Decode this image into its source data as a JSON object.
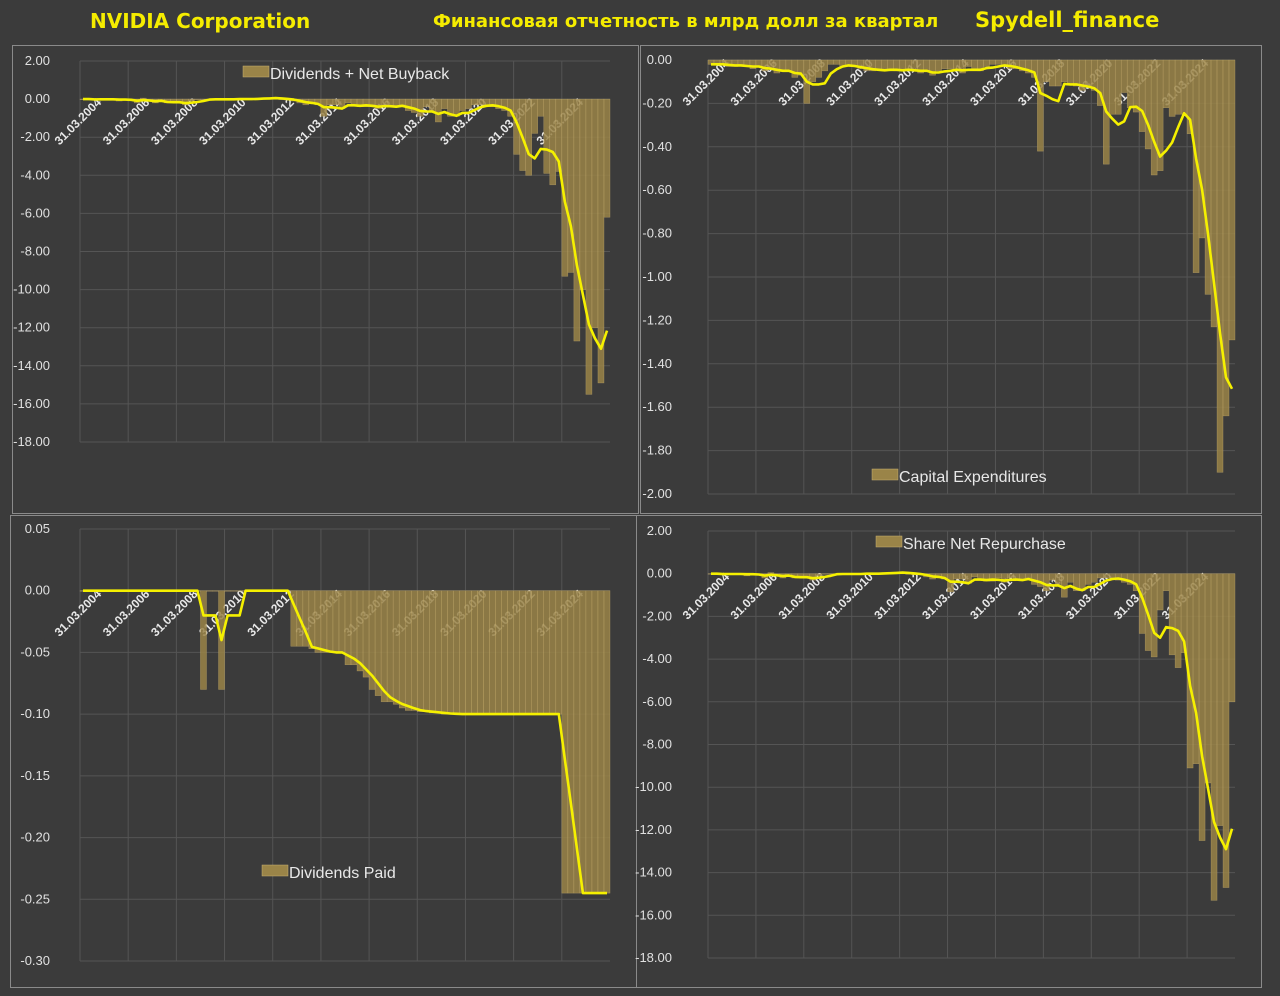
{
  "header": {
    "company": "NVIDIA Corporation",
    "title": "Финансовая отчетность в млрд долл за квартал",
    "source": "Spydell_finance"
  },
  "colors": {
    "bar": "#9a8448",
    "line": "#f5f000",
    "title": "#f5ec00",
    "background": "#3b3b3b"
  },
  "chart_data": [
    {
      "type": "bar+line",
      "legend": "Dividends + Net Buyback",
      "legend_placement": "top",
      "ylim": [
        -18,
        2
      ],
      "ystep": 2,
      "ydecimals": 2,
      "x_start": "31.03.2004",
      "frequency": "quarterly",
      "x_tick_labels": [
        "31.03.2004",
        "31.03.2006",
        "31.03.2008",
        "31.03.2010",
        "31.03.2012",
        "31.03.2014",
        "31.03.2016",
        "31.03.2018",
        "31.03.2020",
        "31.03.2022",
        "31.03.2024"
      ],
      "line": "4-quarter moving average",
      "grid": true,
      "values": [
        0,
        0,
        -0.05,
        0,
        0,
        0,
        -0.1,
        0,
        -0.05,
        -0.2,
        0.05,
        -0.1,
        -0.2,
        -0.1,
        -0.2,
        -0.15,
        -0.2,
        -0.3,
        -0.1,
        0,
        0,
        0,
        -0.05,
        0,
        0,
        0,
        0,
        0,
        0,
        0.05,
        0.05,
        0.05,
        0.05,
        0,
        -0.05,
        -0.1,
        -0.2,
        -0.3,
        -0.2,
        -0.3,
        -0.9,
        -0.3,
        -0.3,
        -0.5,
        -0.2,
        -0.3,
        -0.4,
        -0.4,
        -0.3,
        -0.5,
        -0.3,
        -0.4,
        -0.4,
        -0.3,
        -0.6,
        -0.7,
        -0.9,
        -0.4,
        -0.6,
        -1.2,
        -0.5,
        -0.9,
        -0.9,
        -0.6,
        -0.5,
        -0.3,
        -0.3,
        -0.3,
        -0.4,
        -0.5,
        -0.6,
        -0.9,
        -2.9,
        -3.75,
        -4.0,
        -1.8,
        -0.9,
        -3.9,
        -4.5,
        -3.8,
        -9.3,
        -9.1,
        -12.7,
        -10.0,
        -15.5,
        -12.0,
        -14.9,
        -6.2
      ]
    },
    {
      "type": "bar+line",
      "legend": "Capital Expenditures",
      "legend_placement": "bottom",
      "ylim": [
        -2,
        0
      ],
      "ystep": 0.2,
      "ydecimals": 2,
      "x_start": "31.03.2004",
      "frequency": "quarterly",
      "x_tick_labels": [
        "31.03.2004",
        "31.03.2006",
        "31.03.2008",
        "31.03.2010",
        "31.03.2012",
        "31.03.2014",
        "31.03.2016",
        "31.03.2018",
        "31.03.2020",
        "31.03.2022",
        "31.03.2024"
      ],
      "line": "4-quarter moving average",
      "grid": true,
      "values": [
        -0.02,
        -0.02,
        -0.02,
        -0.03,
        -0.03,
        -0.02,
        -0.03,
        -0.04,
        -0.03,
        -0.05,
        -0.04,
        -0.06,
        -0.05,
        -0.05,
        -0.08,
        -0.07,
        -0.2,
        -0.1,
        -0.08,
        -0.05,
        -0.02,
        -0.02,
        -0.03,
        -0.03,
        -0.03,
        -0.04,
        -0.05,
        -0.05,
        -0.04,
        -0.05,
        -0.04,
        -0.05,
        -0.05,
        -0.04,
        -0.05,
        -0.06,
        -0.05,
        -0.07,
        -0.05,
        -0.04,
        -0.04,
        -0.05,
        -0.06,
        -0.03,
        -0.04,
        -0.05,
        -0.03,
        -0.02,
        -0.02,
        -0.03,
        -0.04,
        -0.04,
        -0.05,
        -0.06,
        -0.08,
        -0.42,
        -0.1,
        -0.12,
        -0.12,
        -0.1,
        -0.11,
        -0.12,
        -0.14,
        -0.12,
        -0.14,
        -0.21,
        -0.48,
        -0.25,
        -0.25,
        -0.15,
        -0.22,
        -0.24,
        -0.33,
        -0.41,
        -0.53,
        -0.51,
        -0.22,
        -0.26,
        -0.25,
        -0.25,
        -0.34,
        -0.98,
        -0.82,
        -1.08,
        -1.23,
        -1.9,
        -1.64,
        -1.29
      ]
    },
    {
      "type": "bar+line",
      "legend": "Dividends Paid",
      "legend_placement": "bottom-left",
      "ylim": [
        -0.3,
        0.05
      ],
      "ystep": 0.05,
      "ydecimals": 2,
      "x_start": "31.03.2004",
      "frequency": "quarterly",
      "x_tick_labels": [
        "31.03.2004",
        "31.03.2006",
        "31.03.2008",
        "31.03.2010",
        "31.03.2012",
        "31.03.2014",
        "31.03.2016",
        "31.03.2018",
        "31.03.2020",
        "31.03.2022",
        "31.03.2024"
      ],
      "line": "4-quarter moving average",
      "grid": true,
      "values": [
        0,
        0,
        0,
        0,
        0,
        0,
        0,
        0,
        0,
        0,
        0,
        0,
        0,
        0,
        0,
        0,
        0,
        0,
        0,
        0,
        -0.08,
        0,
        0,
        -0.08,
        0,
        0,
        0,
        0,
        0,
        0,
        0,
        0,
        0,
        0,
        0,
        -0.045,
        -0.045,
        -0.045,
        -0.047,
        -0.05,
        -0.05,
        -0.05,
        -0.05,
        -0.05,
        -0.06,
        -0.06,
        -0.065,
        -0.07,
        -0.08,
        -0.085,
        -0.09,
        -0.09,
        -0.092,
        -0.095,
        -0.097,
        -0.097,
        -0.098,
        -0.098,
        -0.099,
        -0.099,
        -0.1,
        -0.1,
        -0.1,
        -0.1,
        -0.1,
        -0.1,
        -0.1,
        -0.1,
        -0.1,
        -0.1,
        -0.1,
        -0.1,
        -0.1,
        -0.1,
        -0.1,
        -0.1,
        -0.1,
        -0.1,
        -0.1,
        -0.1,
        -0.245,
        -0.245,
        -0.245,
        -0.245,
        -0.245,
        -0.245,
        -0.245,
        -0.245
      ]
    },
    {
      "type": "bar+line",
      "legend": "Share Net Repurchase",
      "legend_placement": "top",
      "ylim": [
        -18,
        2
      ],
      "ystep": 2,
      "ydecimals": 2,
      "x_start": "31.03.2004",
      "frequency": "quarterly",
      "x_tick_labels": [
        "31.03.2004",
        "31.03.2006",
        "31.03.2008",
        "31.03.2010",
        "31.03.2012",
        "31.03.2014",
        "31.03.2016",
        "31.03.2018",
        "31.03.2020",
        "31.03.2022",
        "31.03.2024"
      ],
      "line": "4-quarter moving average",
      "grid": true,
      "values": [
        0,
        0,
        -0.05,
        0,
        0,
        0,
        -0.1,
        0,
        -0.05,
        -0.2,
        0.05,
        -0.1,
        -0.2,
        -0.1,
        -0.2,
        -0.15,
        -0.2,
        -0.3,
        -0.1,
        0,
        0,
        0,
        -0.05,
        0,
        0,
        0,
        0,
        0,
        0,
        0.05,
        0.05,
        0.05,
        0.05,
        0,
        -0.05,
        -0.05,
        -0.15,
        -0.25,
        -0.15,
        -0.25,
        -0.85,
        -0.25,
        -0.25,
        -0.45,
        -0.15,
        -0.25,
        -0.35,
        -0.35,
        -0.2,
        -0.4,
        -0.2,
        -0.3,
        -0.3,
        -0.2,
        -0.5,
        -0.6,
        -0.8,
        -0.3,
        -0.5,
        -1.1,
        -0.4,
        -0.8,
        -0.8,
        -0.5,
        -0.4,
        -0.2,
        -0.2,
        -0.2,
        -0.3,
        -0.4,
        -0.5,
        -0.8,
        -2.8,
        -3.6,
        -3.9,
        -1.7,
        -0.8,
        -3.8,
        -4.4,
        -3.7,
        -9.1,
        -8.9,
        -12.5,
        -9.8,
        -15.3,
        -11.8,
        -14.7,
        -6.0
      ]
    }
  ]
}
